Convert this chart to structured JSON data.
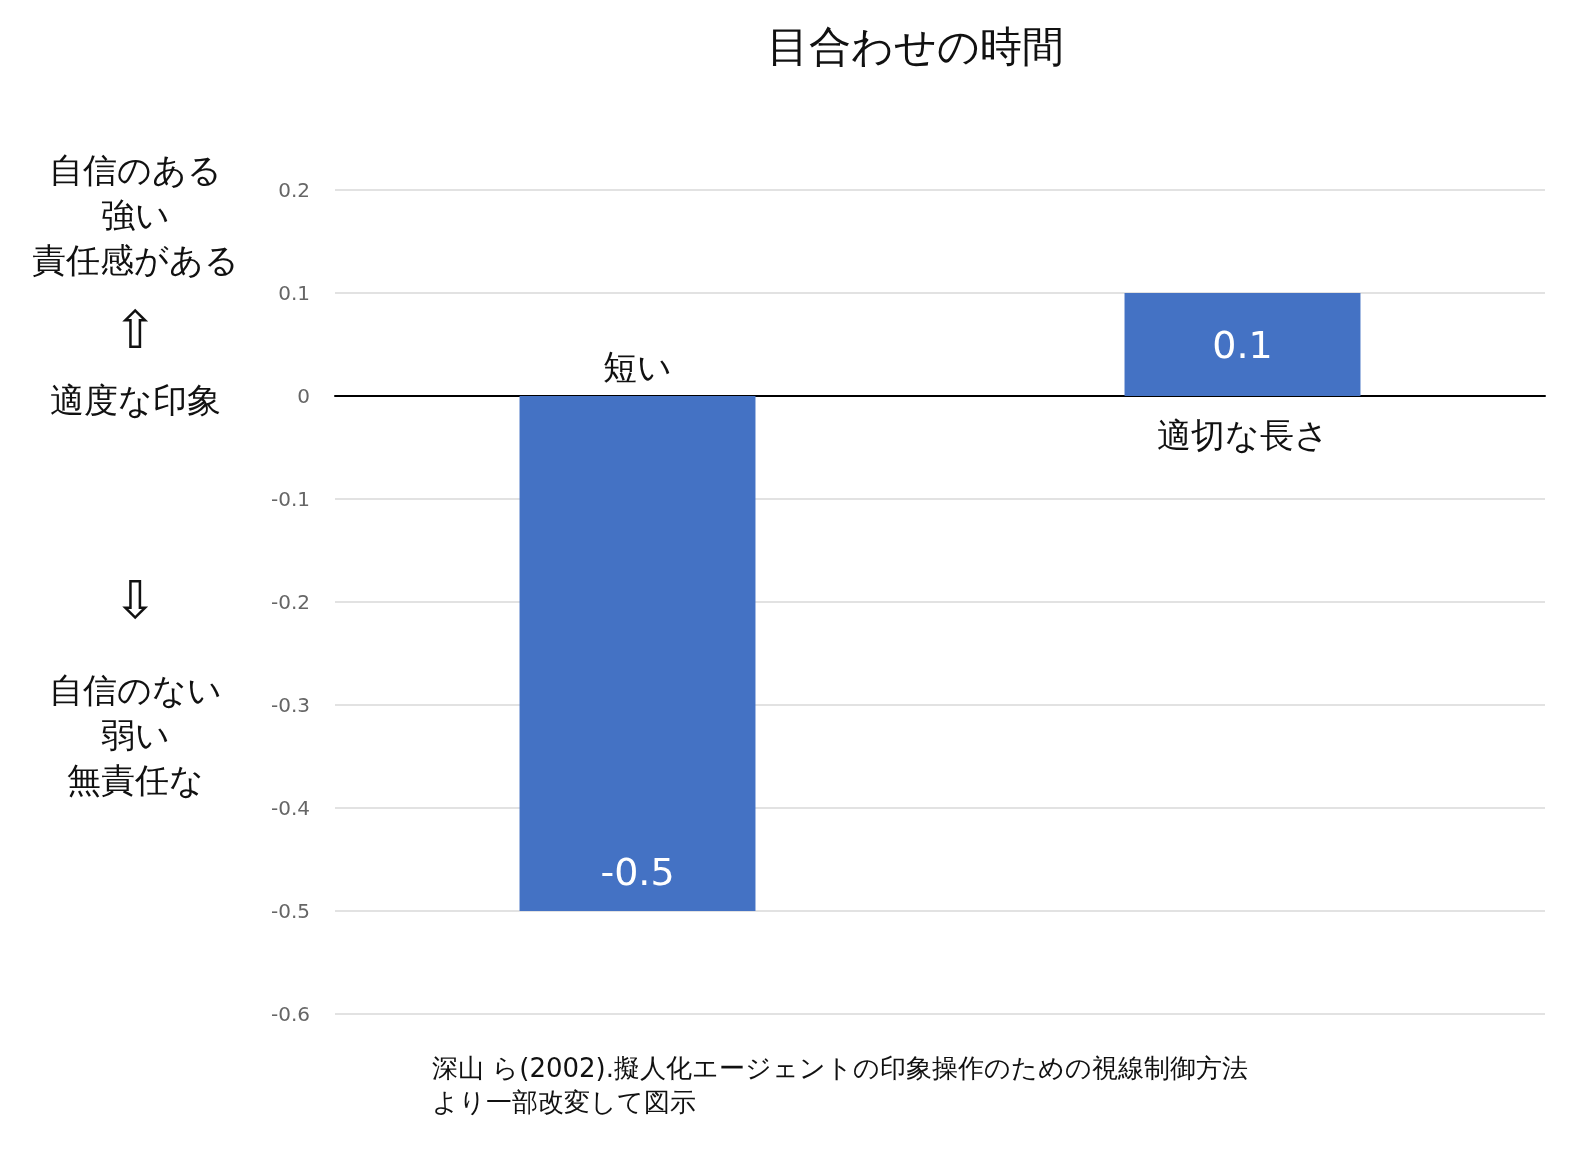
{
  "chart_data": {
    "type": "bar",
    "title": "目合わせの時間",
    "categories": [
      "短い",
      "適切な長さ"
    ],
    "values": [
      -0.5,
      0.1
    ],
    "color": "#4472c4",
    "data_labels": true,
    "ylim": [
      -0.6,
      0.2
    ],
    "yticks": [
      -0.6,
      -0.5,
      -0.4,
      -0.3,
      -0.2,
      -0.1,
      0,
      0.1,
      0.2
    ],
    "grid": "y",
    "annotations": [
      "自信のある",
      "強い",
      "責任感がある",
      "⇧",
      "適度な印象",
      "⇩",
      "自信のない",
      "弱い",
      "無責任な",
      "深山 ら(2002).擬人化エージェントの印象操作のための視線制御方法",
      "より一部改変して図示"
    ]
  }
}
